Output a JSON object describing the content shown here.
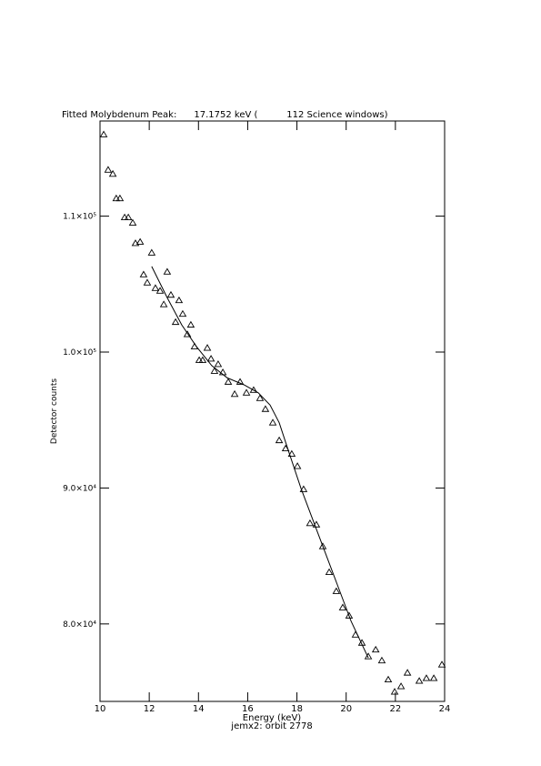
{
  "chart_data": {
    "type": "scatter",
    "title": "Fitted Molybdenum Peak:      17.1752 keV (          112 Science windows)",
    "x_label": "Energy (keV)",
    "subtitle": "jemx2: orbit 2778",
    "y_label": "Detector counts",
    "xlim": [
      10,
      24
    ],
    "xticks": [
      10,
      12,
      14,
      16,
      18,
      20,
      22,
      24
    ],
    "ylim": [
      74300,
      117000
    ],
    "yticks": [
      {
        "value": 80000,
        "label": "8.0×10⁴"
      },
      {
        "value": 90000,
        "label": "9.0×10⁴"
      },
      {
        "value": 100000,
        "label": "1.0×10⁵"
      },
      {
        "value": 110000,
        "label": "1.1×10⁵"
      }
    ],
    "grid": false,
    "series": [
      {
        "marker": "triangle",
        "color": "#000000",
        "x": [
          10.15,
          10.33,
          10.52,
          10.66,
          10.81,
          11.0,
          11.15,
          11.33,
          11.44,
          11.63,
          11.77,
          11.92,
          12.1,
          12.25,
          12.44,
          12.59,
          12.73,
          12.88,
          13.07,
          13.21,
          13.36,
          13.55,
          13.69,
          13.84,
          14.03,
          14.17,
          14.36,
          14.51,
          14.65,
          14.8,
          14.99,
          15.21,
          15.47,
          15.69,
          15.95,
          16.24,
          16.5,
          16.72,
          17.02,
          17.28,
          17.54,
          17.79,
          18.02,
          18.27,
          18.53,
          18.79,
          19.05,
          19.31,
          19.6,
          19.86,
          20.12,
          20.38,
          20.64,
          20.9,
          21.2,
          21.45,
          21.71,
          21.97,
          22.23,
          22.49,
          22.97,
          23.26,
          23.56,
          23.89
        ],
        "values": [
          116000,
          113400,
          113100,
          111300,
          111300,
          109900,
          109900,
          109500,
          108000,
          108100,
          105700,
          105100,
          107300,
          104700,
          104500,
          103500,
          105900,
          104200,
          102200,
          103800,
          102800,
          101300,
          102000,
          100400,
          99400,
          99400,
          100300,
          99500,
          98600,
          99100,
          98500,
          97800,
          96900,
          97800,
          97000,
          97200,
          96600,
          95800,
          94800,
          93500,
          92900,
          92500,
          91600,
          89900,
          87400,
          87300,
          85700,
          83800,
          82400,
          81200,
          80600,
          79200,
          78600,
          77600,
          78100,
          77300,
          75900,
          75000,
          75400,
          76400,
          75800,
          76000,
          76000,
          77000
        ]
      },
      {
        "marker": "line",
        "color": "#000000",
        "x": [
          12.1,
          12.73,
          13.32,
          13.92,
          14.54,
          15.17,
          15.84,
          16.43,
          16.91,
          17.28,
          17.68,
          18.16,
          18.68,
          19.16,
          19.68,
          20.2,
          20.9
        ],
        "values": [
          106300,
          104000,
          102000,
          100400,
          99000,
          98100,
          97600,
          97000,
          96100,
          94800,
          92600,
          90000,
          87500,
          85200,
          82700,
          80200,
          77500
        ]
      }
    ]
  }
}
